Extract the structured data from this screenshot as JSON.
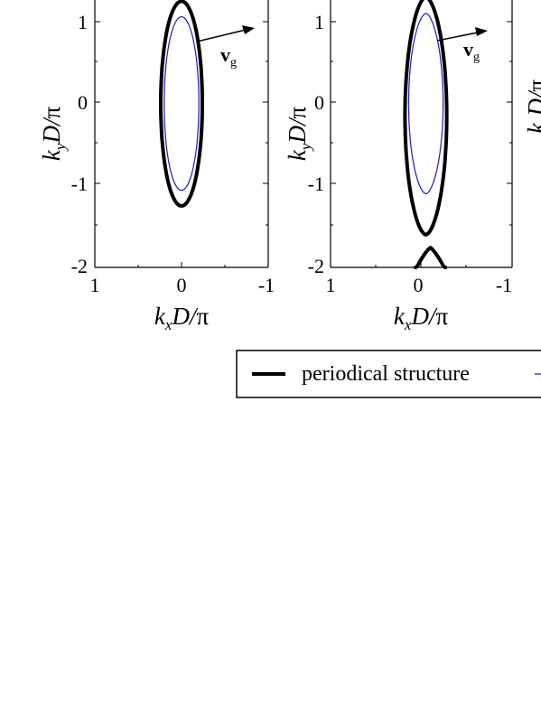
{
  "chart_data": [
    {
      "type": "line",
      "xlabel": "kxD/π",
      "ylabel": "kyD/π",
      "x_ticks": [
        "1",
        "0",
        "-1"
      ],
      "y_ticks": [
        "1",
        "0",
        "-1",
        "-2"
      ],
      "xlim": [
        1,
        -1
      ],
      "ylim": [
        -2,
        1.22
      ],
      "arrow_label": "v",
      "arrow_label_sub": "g",
      "series": [
        {
          "id": "periodic",
          "color": "#000000",
          "contours": [
            {
              "kind": "ellipse",
              "cx": 0.0,
              "cy": 0.0,
              "rx": 0.24,
              "ry": 1.25
            }
          ]
        },
        {
          "id": "effective",
          "color": "#1a1acc",
          "contours": [
            {
              "kind": "ellipse",
              "cx": 0.0,
              "cy": 0.0,
              "rx": 0.2,
              "ry": 1.06
            }
          ]
        }
      ]
    },
    {
      "type": "line",
      "xlabel": "kxD/π",
      "ylabel": "kyD/π",
      "x_ticks": [
        "1",
        "0",
        "-1"
      ],
      "y_ticks": [
        "1",
        "0",
        "-1",
        "-2"
      ],
      "xlim": [
        1,
        -1
      ],
      "ylim": [
        -2,
        1.22
      ],
      "arrow_label": "v",
      "arrow_label_sub": "g",
      "series": [
        {
          "id": "periodic",
          "color": "#000000",
          "contours": [
            {
              "kind": "lens",
              "cx": -0.05,
              "top": 1.3,
              "bottom": -1.6,
              "halfwidth": 0.23
            },
            {
              "kind": "arc",
              "cx": -0.1,
              "top": -1.76,
              "halfwidth": 0.18,
              "depth": 0.3
            }
          ]
        },
        {
          "id": "effective",
          "color": "#1a1acc",
          "contours": [
            {
              "kind": "lens",
              "cx": -0.05,
              "top": 1.1,
              "bottom": -1.1,
              "halfwidth": 0.19
            }
          ]
        }
      ]
    },
    {
      "type": "line",
      "ylabel": "kyD/π",
      "partial": true
    }
  ],
  "legend": {
    "entries": [
      {
        "label": "periodical structure",
        "color": "#000000"
      },
      {
        "label": "",
        "color": "#1a1acc"
      }
    ]
  }
}
